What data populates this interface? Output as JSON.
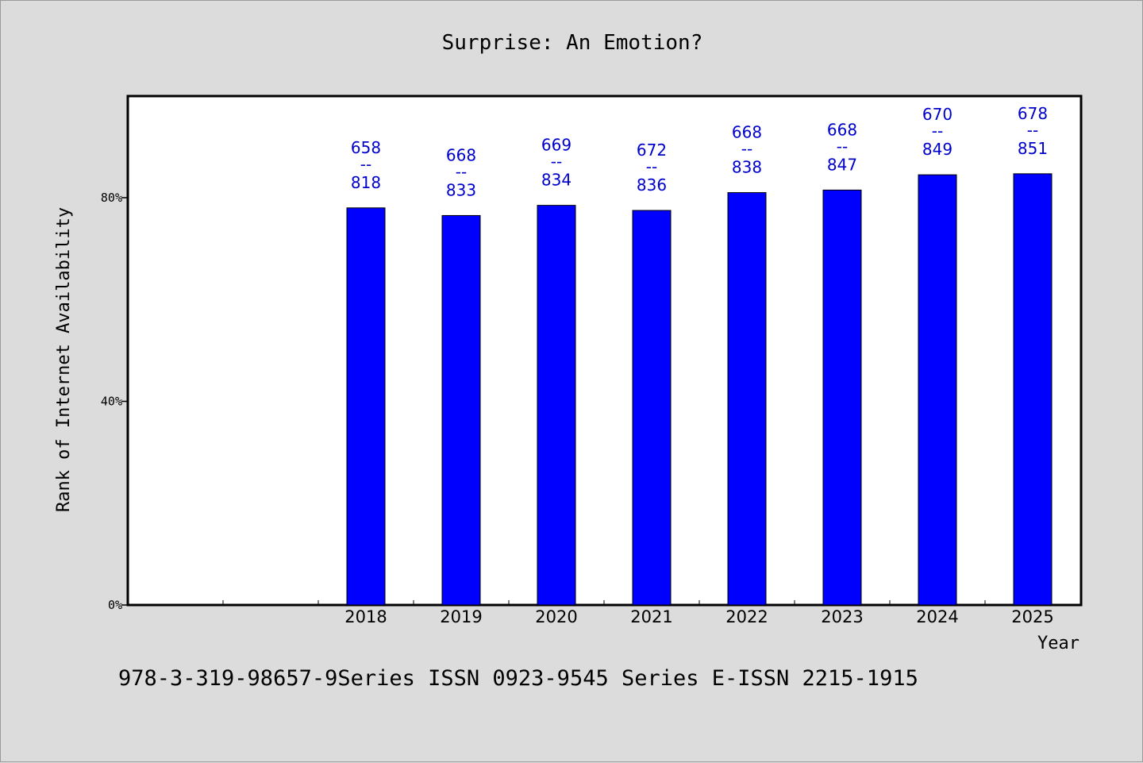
{
  "chart_data": {
    "type": "bar",
    "title": "Surprise: An Emotion?",
    "xlabel": "Year",
    "ylabel": "Rank of Internet Availability",
    "categories": [
      "2018",
      "2019",
      "2020",
      "2021",
      "2022",
      "2023",
      "2024",
      "2025"
    ],
    "values": [
      78,
      76.5,
      78.5,
      77.5,
      81,
      81.5,
      84.5,
      84.7
    ],
    "range_labels": [
      [
        "658",
        "818"
      ],
      [
        "668",
        "833"
      ],
      [
        "669",
        "834"
      ],
      [
        "672",
        "836"
      ],
      [
        "668",
        "838"
      ],
      [
        "668",
        "847"
      ],
      [
        "670",
        "849"
      ],
      [
        "678",
        "851"
      ]
    ],
    "range_separator": "--",
    "ylim": [
      0,
      100
    ],
    "yticks": [
      0,
      40,
      80
    ],
    "ytick_labels": [
      "0%",
      "40%",
      "80%"
    ],
    "bar_color": "#0000ff",
    "label_color": "#0000cc",
    "grid": false
  },
  "footer": {
    "text": "978-3-319-98657-9Series ISSN 0923-9545 Series E-ISSN 2215-1915"
  }
}
